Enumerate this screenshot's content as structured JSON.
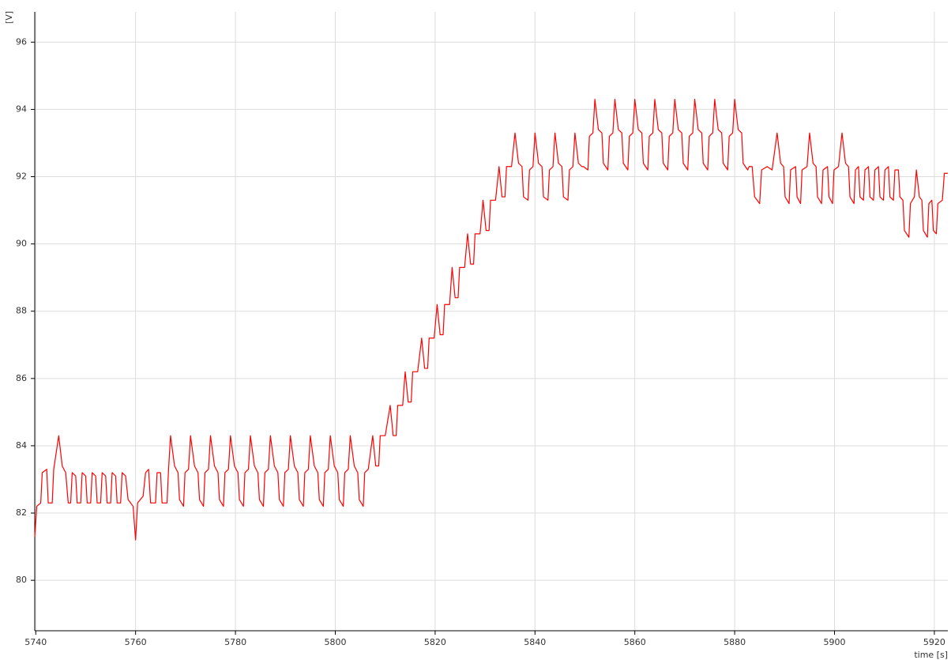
{
  "chart_data": {
    "type": "line",
    "ylabel": "[V]",
    "xlabel": "time [s]",
    "xlim": [
      5739.8,
      5922.7
    ],
    "ylim": [
      78.5,
      96.9
    ],
    "xticks": [
      5740,
      5760,
      5780,
      5800,
      5820,
      5840,
      5860,
      5880,
      5900,
      5920
    ],
    "yticks": [
      80,
      82,
      84,
      86,
      88,
      90,
      92,
      94,
      96
    ],
    "grid": true,
    "series": [
      {
        "color": "#ff0000",
        "x": [
          5739.8,
          5740.2,
          5741,
          5741.3,
          5742.2,
          5742.5,
          5743.3,
          5743.6,
          5744.6,
          5745.3,
          5746,
          5746.5,
          5747,
          5747.3,
          5748,
          5748.3,
          5749,
          5749.3,
          5750,
          5750.3,
          5751,
          5751.3,
          5752,
          5752.3,
          5753,
          5753.3,
          5754,
          5754.3,
          5755,
          5755.3,
          5756,
          5756.3,
          5757,
          5757.3,
          5758,
          5758.5,
          5759.5,
          5760,
          5760.4,
          5761.5,
          5762,
          5762.6,
          5763,
          5764,
          5764.3,
          5765,
          5765.3,
          5766.3,
          5766.6,
          5767,
          5767.8,
          5768.5,
          5768.8,
          5769.6,
          5769.9,
          5770.6,
          5771,
          5771.8,
          5772.5,
          5772.8,
          5773.6,
          5773.9,
          5774.6,
          5775,
          5775.8,
          5776.5,
          5776.8,
          5777.6,
          5777.9,
          5778.6,
          5779,
          5779.8,
          5780.5,
          5780.8,
          5781.6,
          5781.9,
          5782.6,
          5783,
          5783.8,
          5784.5,
          5784.8,
          5785.6,
          5785.9,
          5786.6,
          5787,
          5787.8,
          5788.5,
          5788.8,
          5789.6,
          5789.9,
          5790.6,
          5791,
          5791.8,
          5792.5,
          5792.8,
          5793.6,
          5793.9,
          5794.6,
          5795,
          5795.8,
          5796.5,
          5796.8,
          5797.6,
          5797.9,
          5798.6,
          5799,
          5799.8,
          5800.5,
          5800.8,
          5801.6,
          5801.9,
          5802.6,
          5803,
          5803.8,
          5804.5,
          5804.8,
          5805.6,
          5805.9,
          5806.6,
          5807.5,
          5808.1,
          5808.7,
          5809,
          5810,
          5811,
          5811.6,
          5812.2,
          5812.5,
          5813.5,
          5814,
          5814.6,
          5815.2,
          5815.5,
          5816.5,
          5817.3,
          5817.9,
          5818.5,
          5818.8,
          5819.8,
          5820.4,
          5821,
          5821.6,
          5821.9,
          5822.9,
          5823.4,
          5824,
          5824.6,
          5824.9,
          5825.9,
          5826.5,
          5827.1,
          5827.7,
          5828,
          5829,
          5829.6,
          5830.2,
          5830.8,
          5831.1,
          5832.1,
          5832.8,
          5833.4,
          5834,
          5834.3,
          5835.3,
          5836,
          5836.7,
          5837.4,
          5837.7,
          5838.6,
          5838.9,
          5839.6,
          5840,
          5840.7,
          5841.4,
          5841.7,
          5842.6,
          5842.9,
          5843.6,
          5844,
          5844.7,
          5845.4,
          5845.7,
          5846.6,
          5846.9,
          5847.6,
          5848,
          5848.7,
          5849.4,
          5849.7,
          5850.6,
          5850.9,
          5851.6,
          5852,
          5852.7,
          5853.4,
          5853.7,
          5854.6,
          5854.9,
          5855.6,
          5856,
          5856.7,
          5857.4,
          5857.7,
          5858.6,
          5858.9,
          5859.6,
          5860,
          5860.7,
          5861.4,
          5861.7,
          5862.6,
          5862.9,
          5863.6,
          5864,
          5864.7,
          5865.4,
          5865.7,
          5866.6,
          5866.9,
          5867.6,
          5868,
          5868.7,
          5869.4,
          5869.7,
          5870.6,
          5870.9,
          5871.6,
          5872,
          5872.7,
          5873.4,
          5873.7,
          5874.6,
          5874.9,
          5875.6,
          5876,
          5876.7,
          5877.4,
          5877.7,
          5878.6,
          5878.9,
          5879.6,
          5880,
          5880.7,
          5881.4,
          5881.7,
          5882.6,
          5882.9,
          5883.5,
          5884,
          5885,
          5885.4,
          5886.5,
          5887.5,
          5888.5,
          5889.2,
          5889.8,
          5890.1,
          5890.9,
          5891.2,
          5892.2,
          5892.5,
          5893.2,
          5893.5,
          5894.5,
          5895,
          5895.7,
          5896.3,
          5896.6,
          5897.4,
          5897.7,
          5898.6,
          5898.9,
          5899.6,
          5899.9,
          5900.8,
          5901.5,
          5902.2,
          5902.8,
          5903.1,
          5903.9,
          5904.2,
          5904.8,
          5905.1,
          5905.8,
          5906.1,
          5906.8,
          5907.1,
          5907.8,
          5908.1,
          5908.8,
          5909.1,
          5909.8,
          5910.1,
          5910.8,
          5911.1,
          5911.8,
          5912.1,
          5912.8,
          5913.1,
          5913.7,
          5914,
          5914.9,
          5915.2,
          5916,
          5916.4,
          5917,
          5917.5,
          5917.8,
          5918.6,
          5918.9,
          5919.5,
          5919.8,
          5920.4,
          5920.7,
          5921.6,
          5922,
          5922.7
        ],
        "values": [
          81.3,
          82.2,
          82.3,
          83.2,
          83.3,
          82.3,
          82.3,
          83.3,
          84.3,
          83.4,
          83.2,
          82.3,
          82.3,
          83.2,
          83.1,
          82.3,
          82.3,
          83.2,
          83.1,
          82.3,
          82.3,
          83.2,
          83.1,
          82.3,
          82.3,
          83.2,
          83.1,
          82.3,
          82.3,
          83.2,
          83.1,
          82.3,
          82.3,
          83.2,
          83.1,
          82.4,
          82.2,
          81.2,
          82.3,
          82.5,
          83.2,
          83.3,
          82.3,
          82.3,
          83.2,
          83.2,
          82.3,
          82.3,
          83.3,
          84.3,
          83.4,
          83.2,
          82.4,
          82.2,
          83.2,
          83.3,
          84.3,
          83.4,
          83.2,
          82.4,
          82.2,
          83.2,
          83.3,
          84.3,
          83.4,
          83.2,
          82.4,
          82.2,
          83.2,
          83.3,
          84.3,
          83.4,
          83.2,
          82.4,
          82.2,
          83.2,
          83.3,
          84.3,
          83.4,
          83.2,
          82.4,
          82.2,
          83.2,
          83.3,
          84.3,
          83.4,
          83.2,
          82.4,
          82.2,
          83.2,
          83.3,
          84.3,
          83.4,
          83.2,
          82.4,
          82.2,
          83.2,
          83.3,
          84.3,
          83.4,
          83.2,
          82.4,
          82.2,
          83.2,
          83.3,
          84.3,
          83.4,
          83.2,
          82.4,
          82.2,
          83.2,
          83.3,
          84.3,
          83.4,
          83.2,
          82.4,
          82.2,
          83.2,
          83.3,
          84.3,
          83.4,
          83.4,
          84.3,
          84.3,
          85.2,
          84.3,
          84.3,
          85.2,
          85.2,
          86.2,
          85.3,
          85.3,
          86.2,
          86.2,
          87.2,
          86.3,
          86.3,
          87.2,
          87.2,
          88.2,
          87.3,
          87.3,
          88.2,
          88.2,
          89.3,
          88.4,
          88.4,
          89.3,
          89.3,
          90.3,
          89.4,
          89.4,
          90.3,
          90.3,
          91.3,
          90.4,
          90.4,
          91.3,
          91.3,
          92.3,
          91.4,
          91.4,
          92.3,
          92.3,
          93.3,
          92.4,
          92.3,
          91.4,
          91.3,
          92.2,
          92.3,
          93.3,
          92.4,
          92.3,
          91.4,
          91.3,
          92.2,
          92.3,
          93.3,
          92.4,
          92.3,
          91.4,
          91.3,
          92.2,
          92.3,
          93.3,
          92.4,
          92.3,
          92.3,
          92.2,
          93.2,
          93.3,
          94.3,
          93.4,
          93.3,
          92.4,
          92.2,
          93.2,
          93.3,
          94.3,
          93.4,
          93.3,
          92.4,
          92.2,
          93.2,
          93.3,
          94.3,
          93.4,
          93.3,
          92.4,
          92.2,
          93.2,
          93.3,
          94.3,
          93.4,
          93.3,
          92.4,
          92.2,
          93.2,
          93.3,
          94.3,
          93.4,
          93.3,
          92.4,
          92.2,
          93.2,
          93.3,
          94.3,
          93.4,
          93.3,
          92.4,
          92.2,
          93.2,
          93.3,
          94.3,
          93.4,
          93.3,
          92.4,
          92.2,
          93.2,
          93.3,
          94.3,
          93.4,
          93.3,
          92.4,
          92.2,
          92.3,
          92.3,
          91.4,
          91.2,
          92.2,
          92.3,
          92.2,
          93.3,
          92.4,
          92.3,
          91.4,
          91.2,
          92.2,
          92.3,
          91.4,
          91.2,
          92.2,
          92.3,
          93.3,
          92.4,
          92.3,
          91.4,
          91.2,
          92.2,
          92.3,
          91.4,
          91.2,
          92.2,
          92.3,
          93.3,
          92.4,
          92.3,
          91.4,
          91.2,
          92.2,
          92.3,
          91.4,
          91.3,
          92.2,
          92.3,
          91.4,
          91.3,
          92.2,
          92.3,
          91.4,
          91.3,
          92.2,
          92.3,
          91.4,
          91.3,
          92.2,
          92.2,
          91.4,
          91.3,
          90.4,
          90.2,
          91.2,
          91.4,
          92.2,
          91.4,
          91.3,
          90.4,
          90.2,
          91.2,
          91.3,
          90.4,
          90.3,
          91.2,
          91.3,
          92.1,
          92.1
        ]
      }
    ]
  }
}
